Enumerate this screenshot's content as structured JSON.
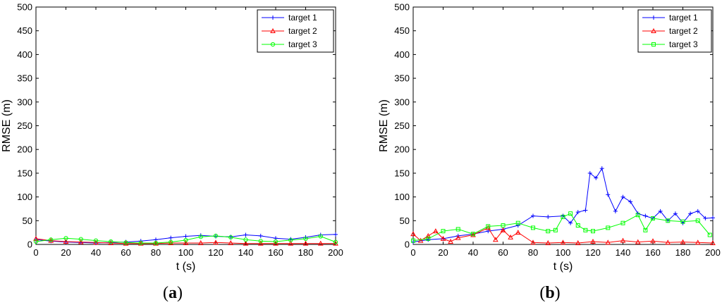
{
  "chart_data": [
    {
      "type": "line",
      "panel_label": "a",
      "xlabel": "t (s)",
      "ylabel": "RMSE (m)",
      "xlim": [
        0,
        200
      ],
      "ylim": [
        0,
        500
      ],
      "xticks": [
        0,
        20,
        40,
        60,
        80,
        100,
        120,
        140,
        160,
        180,
        200
      ],
      "yticks": [
        0,
        50,
        100,
        150,
        200,
        250,
        300,
        350,
        400,
        450,
        500
      ],
      "legend_position": "top-right",
      "grid": false,
      "series": [
        {
          "name": "target 1",
          "color": "#0000ff",
          "marker": "plus",
          "x": [
            0,
            10,
            20,
            30,
            40,
            50,
            60,
            70,
            80,
            90,
            100,
            110,
            120,
            130,
            140,
            150,
            160,
            170,
            180,
            190,
            200
          ],
          "y": [
            10,
            7,
            5,
            4,
            3,
            4,
            5,
            7,
            10,
            14,
            17,
            19,
            17,
            16,
            20,
            18,
            13,
            11,
            15,
            20,
            21
          ]
        },
        {
          "name": "target 2",
          "color": "#ff0000",
          "marker": "triangle",
          "x": [
            0,
            10,
            20,
            30,
            40,
            50,
            60,
            70,
            80,
            90,
            100,
            110,
            120,
            130,
            140,
            150,
            160,
            170,
            180,
            190,
            200
          ],
          "y": [
            12,
            8,
            6,
            5,
            4,
            3,
            2,
            2,
            2,
            3,
            3,
            3,
            4,
            3,
            2,
            2,
            2,
            2,
            2,
            2,
            2
          ]
        },
        {
          "name": "target 3",
          "color": "#00ff00",
          "marker": "circle",
          "x": [
            0,
            10,
            20,
            30,
            40,
            50,
            60,
            70,
            80,
            90,
            100,
            110,
            120,
            130,
            140,
            150,
            160,
            170,
            180,
            190,
            200
          ],
          "y": [
            6,
            10,
            13,
            11,
            8,
            6,
            4,
            3,
            3,
            5,
            9,
            16,
            18,
            15,
            10,
            7,
            6,
            9,
            12,
            17,
            5
          ]
        }
      ]
    },
    {
      "type": "line",
      "panel_label": "b",
      "xlabel": "t (s)",
      "ylabel": "RMSE (m)",
      "xlim": [
        0,
        200
      ],
      "ylim": [
        0,
        500
      ],
      "xticks": [
        0,
        20,
        40,
        60,
        80,
        100,
        120,
        140,
        160,
        180,
        200
      ],
      "yticks": [
        0,
        50,
        100,
        150,
        200,
        250,
        300,
        350,
        400,
        450,
        500
      ],
      "legend_position": "top-right",
      "grid": false,
      "series": [
        {
          "name": "target 1",
          "color": "#0000ff",
          "marker": "plus",
          "x": [
            0,
            10,
            20,
            30,
            40,
            50,
            60,
            70,
            80,
            90,
            100,
            105,
            110,
            115,
            118,
            122,
            126,
            130,
            135,
            140,
            145,
            150,
            155,
            160,
            165,
            170,
            175,
            180,
            185,
            190,
            195,
            200
          ],
          "y": [
            5,
            10,
            12,
            18,
            22,
            28,
            32,
            40,
            60,
            58,
            60,
            45,
            68,
            72,
            150,
            140,
            160,
            105,
            70,
            100,
            90,
            65,
            60,
            55,
            70,
            50,
            65,
            45,
            65,
            70,
            55,
            56
          ]
        },
        {
          "name": "target 2",
          "color": "#ff0000",
          "marker": "triangle",
          "x": [
            0,
            5,
            10,
            15,
            20,
            25,
            30,
            40,
            50,
            55,
            60,
            65,
            70,
            80,
            90,
            100,
            110,
            120,
            130,
            140,
            150,
            160,
            170,
            180,
            190,
            200
          ],
          "y": [
            22,
            8,
            18,
            28,
            12,
            6,
            14,
            20,
            35,
            10,
            30,
            15,
            25,
            4,
            3,
            4,
            3,
            6,
            4,
            8,
            5,
            7,
            4,
            5,
            4,
            3
          ]
        },
        {
          "name": "target 3",
          "color": "#00ff00",
          "marker": "square",
          "x": [
            0,
            10,
            20,
            30,
            40,
            50,
            60,
            70,
            80,
            90,
            95,
            100,
            105,
            110,
            115,
            120,
            130,
            140,
            150,
            155,
            160,
            170,
            180,
            190,
            198
          ],
          "y": [
            8,
            12,
            28,
            32,
            22,
            38,
            40,
            45,
            35,
            28,
            30,
            58,
            65,
            40,
            30,
            28,
            35,
            45,
            62,
            30,
            55,
            50,
            48,
            50,
            20
          ]
        }
      ]
    }
  ]
}
